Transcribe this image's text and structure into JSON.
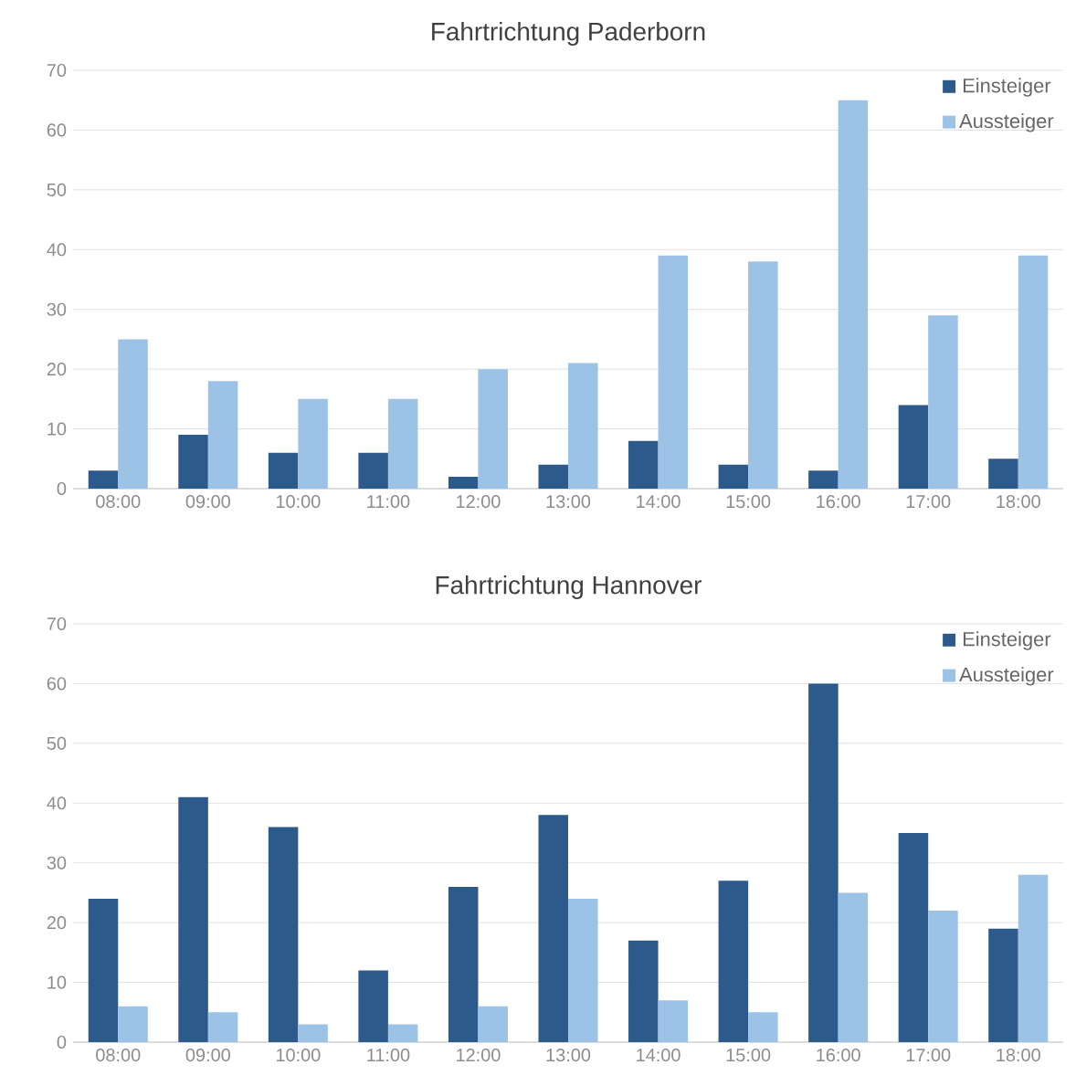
{
  "chart_data": [
    {
      "type": "bar",
      "title": "Fahrtrichtung Paderborn",
      "categories": [
        "08:00",
        "09:00",
        "10:00",
        "11:00",
        "12:00",
        "13:00",
        "14:00",
        "15:00",
        "16:00",
        "17:00",
        "18:00"
      ],
      "series": [
        {
          "name": "Einsteiger",
          "color": "#2c5a8a",
          "values": [
            3,
            9,
            6,
            6,
            2,
            4,
            8,
            4,
            3,
            14,
            5
          ]
        },
        {
          "name": "Aussteiger",
          "color": "#9cc2e5",
          "values": [
            25,
            18,
            15,
            15,
            20,
            21,
            39,
            38,
            65,
            29,
            39
          ]
        }
      ],
      "ylim": [
        0,
        70
      ],
      "yticks": [
        0,
        10,
        20,
        30,
        40,
        50,
        60,
        70
      ],
      "grid": "y",
      "legend": "top right"
    },
    {
      "type": "bar",
      "title": "Fahrtrichtung Hannover",
      "categories": [
        "08:00",
        "09:00",
        "10:00",
        "11:00",
        "12:00",
        "13:00",
        "14:00",
        "15:00",
        "16:00",
        "17:00",
        "18:00"
      ],
      "series": [
        {
          "name": "Einsteiger",
          "color": "#2c5a8a",
          "values": [
            24,
            41,
            36,
            12,
            26,
            38,
            17,
            27,
            60,
            35,
            19
          ]
        },
        {
          "name": "Aussteiger",
          "color": "#9cc2e5",
          "values": [
            6,
            5,
            3,
            3,
            6,
            24,
            7,
            5,
            25,
            22,
            28
          ]
        }
      ],
      "ylim": [
        0,
        70
      ],
      "yticks": [
        0,
        10,
        20,
        30,
        40,
        50,
        60,
        70
      ],
      "grid": "y",
      "legend": "top right"
    }
  ]
}
